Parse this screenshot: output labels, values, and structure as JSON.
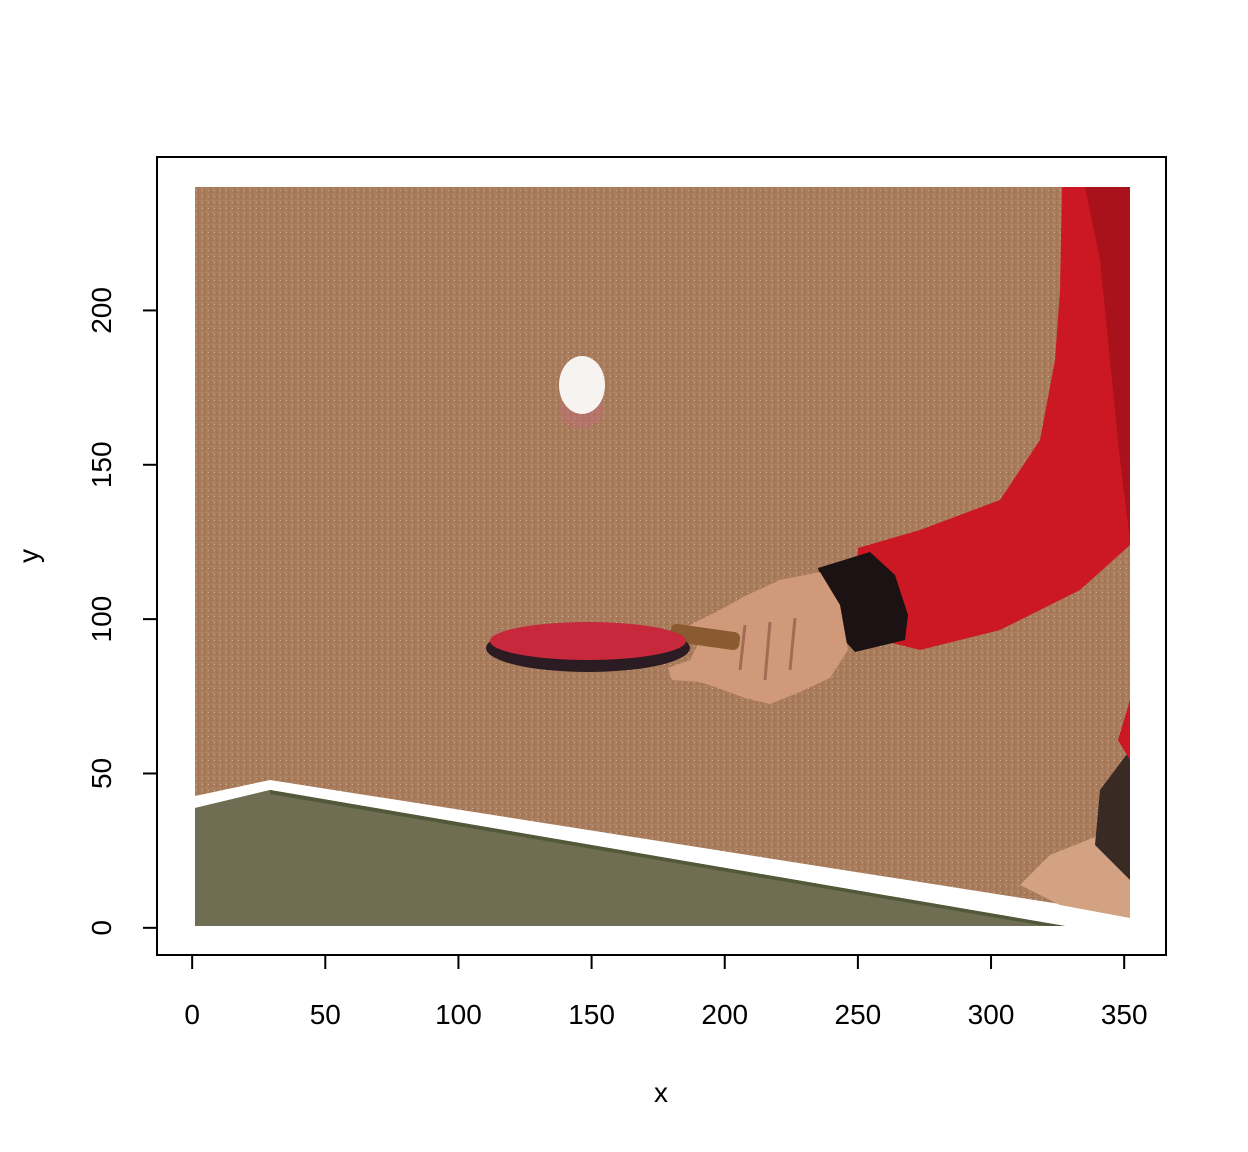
{
  "chart_data": {
    "type": "image",
    "title": "",
    "xlabel": "x",
    "ylabel": "y",
    "xlim": [
      -13.2,
      365.7
    ],
    "ylim": [
      -8.8,
      249.7
    ],
    "image_extent": {
      "x": [
        1,
        352
      ],
      "y": [
        1,
        240
      ]
    },
    "xticks": [
      0,
      50,
      100,
      150,
      200,
      250,
      300,
      350
    ],
    "yticks": [
      0,
      50,
      100,
      150,
      200
    ],
    "xtick_labels": [
      "0",
      "50",
      "100",
      "150",
      "200",
      "250",
      "300",
      "350"
    ],
    "ytick_labels": [
      "0",
      "50",
      "100",
      "150",
      "200"
    ],
    "grid": false,
    "legend": "none",
    "colors": {
      "wall": "#a87a5a",
      "table_surface": "#6f6e52",
      "table_edge": "#ffffff",
      "paddle_rubber": "#c8283c",
      "paddle_handle": "#8a5a30",
      "ball": "#f6f3f1",
      "sleeve": "#cc1822",
      "cuff": "#1c1214",
      "skin": "#d09a7a",
      "axis": "#000000"
    },
    "image_objects": [
      {
        "name": "ball",
        "x": 146,
        "y": 174
      },
      {
        "name": "paddle",
        "x": 160,
        "y": 91
      },
      {
        "name": "hand",
        "x": 220,
        "y": 90
      },
      {
        "name": "arm",
        "x": 320,
        "y": 150
      },
      {
        "name": "table",
        "x": 175,
        "y": 20
      }
    ]
  }
}
